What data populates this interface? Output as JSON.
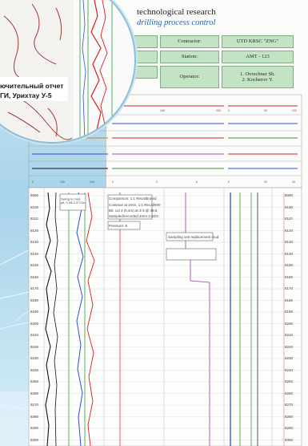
{
  "header": {
    "title": "technological research",
    "subtitle": "drilling process control"
  },
  "info_table": {
    "left_labels": [
      "",
      "",
      ""
    ],
    "contractor_label": "Contractor:",
    "contractor_value": "UTD KRSC \"ZNG\"",
    "station_label": "Station:",
    "station_value": "AMT - 123",
    "operator_label": "Operator:",
    "operator_value_1": "1. Ovrechner Sh.",
    "operator_value_2": "2. Kocherov Y."
  },
  "circle": {
    "caption_line1": "ючительный отчет",
    "caption_line2": "ГИ, Урихтау У-5"
  },
  "log": {
    "depth_labels": [
      "8090",
      "8100",
      "8110",
      "8120",
      "8130",
      "8140",
      "8150",
      "8160",
      "8170",
      "8180",
      "8190",
      "8200",
      "8210",
      "8220",
      "8230",
      "8240",
      "8250",
      "8260",
      "8270",
      "8280",
      "8290",
      "8300"
    ],
    "annotations": [
      "Swing in mud pit, 0.08-1.9°C/m",
      "Comparison: 1:1 Recalibrated",
      "Sampling unit replacement mud",
      "Continue at 2mm, 1:1 Recal/500",
      "Bit: cut 3 (0.2m) at 3-3 @ 38.8",
      "Sampled/recorded 2mm 2.60/3",
      "Pressure: 8"
    ]
  },
  "colors": {
    "background": "#b8dcee",
    "paper": "#fbfcfa",
    "header_cells": "#c4e2c4",
    "track_red": "#d81e1e",
    "track_blue": "#2c4fd6",
    "track_green": "#2b9b3a",
    "track_black": "#111111"
  }
}
